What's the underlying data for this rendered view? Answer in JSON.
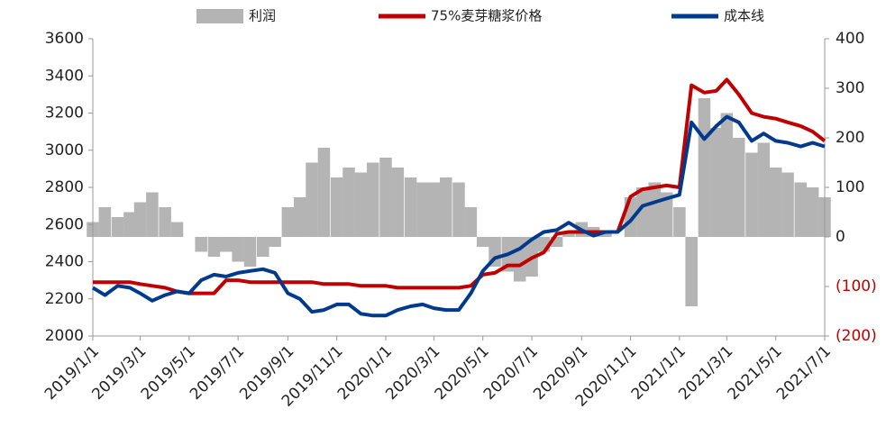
{
  "chart_data": {
    "type": "combo",
    "x": [
      "2019/1/1",
      "2019/1/16",
      "2019/2/1",
      "2019/2/16",
      "2019/3/1",
      "2019/3/16",
      "2019/4/1",
      "2019/4/16",
      "2019/5/1",
      "2019/5/16",
      "2019/6/1",
      "2019/6/16",
      "2019/7/1",
      "2019/7/16",
      "2019/8/1",
      "2019/8/16",
      "2019/9/1",
      "2019/9/16",
      "2019/10/1",
      "2019/10/16",
      "2019/11/1",
      "2019/11/16",
      "2019/12/1",
      "2019/12/16",
      "2020/1/1",
      "2020/1/16",
      "2020/2/1",
      "2020/2/16",
      "2020/3/1",
      "2020/3/16",
      "2020/4/1",
      "2020/4/16",
      "2020/5/1",
      "2020/5/16",
      "2020/6/1",
      "2020/6/16",
      "2020/7/1",
      "2020/7/16",
      "2020/8/1",
      "2020/8/16",
      "2020/9/1",
      "2020/9/16",
      "2020/10/1",
      "2020/10/16",
      "2020/11/1",
      "2020/11/16",
      "2020/12/1",
      "2020/12/16",
      "2021/1/1",
      "2021/1/16",
      "2021/2/1",
      "2021/2/16",
      "2021/3/1",
      "2021/3/16",
      "2021/4/1",
      "2021/4/16",
      "2021/5/1",
      "2021/5/16",
      "2021/6/1",
      "2021/6/16",
      "2021/7/1"
    ],
    "series": [
      {
        "name": "利润",
        "type": "bar",
        "axis": "y2",
        "color": "#b4b4b4",
        "values": [
          30,
          60,
          40,
          50,
          70,
          90,
          60,
          30,
          0,
          -30,
          -40,
          -30,
          -50,
          -60,
          -40,
          -20,
          60,
          80,
          150,
          180,
          120,
          140,
          130,
          150,
          160,
          140,
          120,
          110,
          110,
          120,
          110,
          60,
          -20,
          -60,
          -70,
          -90,
          -80,
          -30,
          -20,
          10,
          30,
          20,
          10,
          0,
          80,
          100,
          110,
          90,
          60,
          -140,
          280,
          220,
          250,
          200,
          170,
          190,
          140,
          130,
          110,
          100,
          80
        ]
      },
      {
        "name": "75%麦芽糖浆价格",
        "type": "line",
        "color": "#c00000",
        "values": [
          2290,
          2290,
          2290,
          2290,
          2280,
          2270,
          2260,
          2240,
          2230,
          2230,
          2230,
          2300,
          2300,
          2290,
          2290,
          2290,
          2290,
          2290,
          2290,
          2280,
          2280,
          2280,
          2270,
          2270,
          2270,
          2260,
          2260,
          2260,
          2260,
          2260,
          2260,
          2270,
          2330,
          2340,
          2380,
          2380,
          2420,
          2450,
          2550,
          2560,
          2560,
          2560,
          2560,
          2560,
          2750,
          2790,
          2800,
          2810,
          2800,
          3350,
          3310,
          3320,
          3380,
          3300,
          3200,
          3180,
          3170,
          3150,
          3130,
          3100,
          3050
        ]
      },
      {
        "name": "成本线",
        "type": "line",
        "color": "#003a8c",
        "values": [
          2260,
          2220,
          2270,
          2260,
          2230,
          2190,
          2220,
          2240,
          2230,
          2300,
          2330,
          2320,
          2340,
          2350,
          2360,
          2340,
          2230,
          2200,
          2130,
          2140,
          2170,
          2170,
          2120,
          2110,
          2110,
          2140,
          2160,
          2170,
          2150,
          2140,
          2140,
          2230,
          2350,
          2420,
          2440,
          2470,
          2520,
          2560,
          2570,
          2610,
          2570,
          2540,
          2560,
          2560,
          2620,
          2700,
          2720,
          2740,
          2760,
          3150,
          3060,
          3130,
          3180,
          3150,
          3050,
          3090,
          3050,
          3040,
          3020,
          3040,
          3020
        ]
      }
    ],
    "xlim": [
      "2019/1/1",
      "2021/7/1"
    ],
    "xticks": [
      "2019/1/1",
      "2019/3/1",
      "2019/5/1",
      "2019/7/1",
      "2019/9/1",
      "2019/11/1",
      "2020/1/1",
      "2020/3/1",
      "2020/5/1",
      "2020/7/1",
      "2020/9/1",
      "2020/11/1",
      "2021/1/1",
      "2021/3/1",
      "2021/5/1",
      "2021/7/1"
    ],
    "ylim": [
      2000,
      3600
    ],
    "yticks": [
      2000,
      2200,
      2400,
      2600,
      2800,
      3000,
      3200,
      3400,
      3600
    ],
    "y2lim": [
      -200,
      400
    ],
    "y2ticks": [
      {
        "value": -200,
        "label": "(200)"
      },
      {
        "value": -100,
        "label": "(100)"
      },
      0,
      100,
      200,
      300,
      400
    ],
    "y2_negative_tick_color": "#c00000",
    "legend": "top"
  }
}
